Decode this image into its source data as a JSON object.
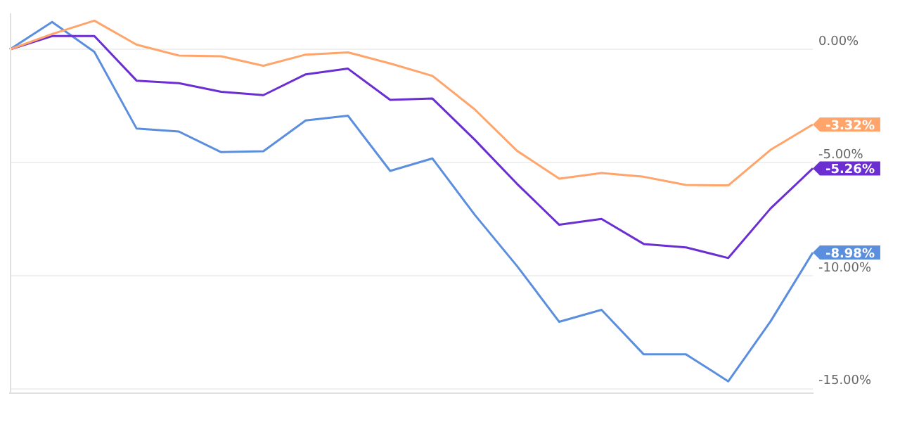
{
  "chart_data": {
    "type": "line",
    "categories": [
      null,
      null,
      null,
      null,
      null,
      null,
      null,
      null,
      null,
      null,
      null,
      null,
      null,
      null,
      null,
      null,
      null,
      null,
      null,
      null
    ],
    "ylim": [
      -15.2,
      1.6
    ],
    "yticks": [
      {
        "value": 0,
        "label": "0.00%"
      },
      {
        "value": -5,
        "label": "-5.00%"
      },
      {
        "value": -10,
        "label": "-10.00%"
      },
      {
        "value": -15,
        "label": "-15.00%"
      }
    ],
    "grid": "y",
    "series": [
      {
        "color": "#ffa56b",
        "values": [
          0,
          0.68,
          1.27,
          0.21,
          -0.27,
          -0.3,
          -0.72,
          -0.23,
          -0.13,
          -0.62,
          -1.17,
          -2.65,
          -4.48,
          -5.71,
          -5.46,
          -5.63,
          -5.99,
          -6.01,
          -4.44,
          -3.32
        ],
        "value_labels": [
          null,
          null,
          null,
          null,
          null,
          null,
          null,
          null,
          null,
          null,
          null,
          null,
          null,
          null,
          null,
          null,
          null,
          null,
          null,
          "-3.32%"
        ]
      },
      {
        "color": "#6b2fd1",
        "values": [
          0,
          0.59,
          0.59,
          -1.38,
          -1.49,
          -1.87,
          -2.02,
          -1.1,
          -0.85,
          -2.23,
          -2.17,
          -3.99,
          -5.94,
          -7.75,
          -7.49,
          -8.6,
          -8.75,
          -9.22,
          -7.03,
          -5.26
        ],
        "value_labels": [
          null,
          null,
          null,
          null,
          null,
          null,
          null,
          null,
          null,
          null,
          null,
          null,
          null,
          null,
          null,
          null,
          null,
          null,
          null,
          "-5.26%"
        ]
      },
      {
        "color": "#5b8fde",
        "values": [
          0,
          1.21,
          -0.11,
          -3.5,
          -3.63,
          -4.54,
          -4.5,
          -3.14,
          -2.93,
          -5.37,
          -4.82,
          -7.31,
          -9.57,
          -12.04,
          -11.51,
          -13.48,
          -13.48,
          -14.67,
          -12.02,
          -8.98
        ],
        "value_labels": [
          null,
          null,
          null,
          null,
          null,
          null,
          null,
          null,
          null,
          null,
          null,
          null,
          null,
          null,
          null,
          null,
          null,
          null,
          null,
          "-8.98%"
        ]
      }
    ]
  }
}
